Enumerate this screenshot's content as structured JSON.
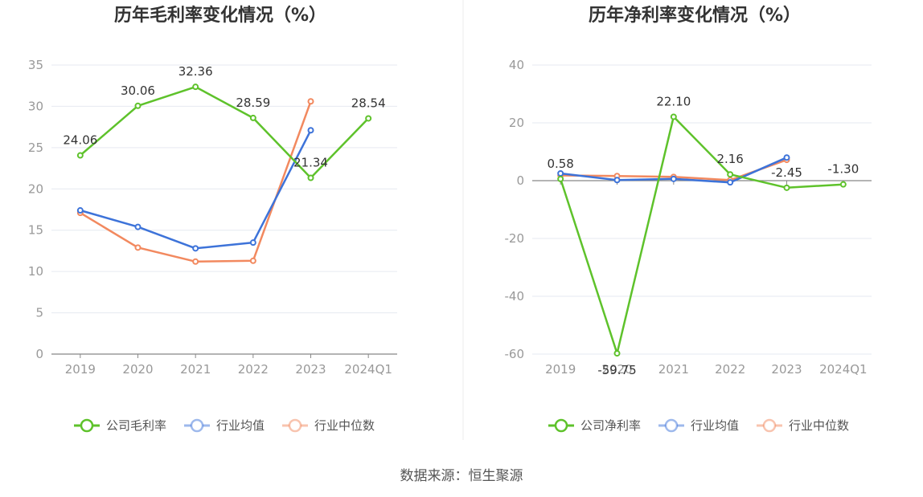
{
  "source": "数据来源：恒生聚源",
  "colors": {
    "company": "#5ec22b",
    "industry_avg": "#3d73d9",
    "industry_median": "#f2895f",
    "grid": "#e6e9f0",
    "axis": "#888888",
    "divider": "#eeeeee"
  },
  "chart_data": [
    {
      "type": "line",
      "title": "历年毛利率变化情况（%）",
      "categories": [
        "2019",
        "2020",
        "2021",
        "2022",
        "2023",
        "2024Q1"
      ],
      "ylim": [
        0,
        35
      ],
      "yticks": [
        0,
        5,
        10,
        15,
        20,
        25,
        30,
        35
      ],
      "grid": true,
      "legend_position": "bottom",
      "series": [
        {
          "name": "公司毛利率",
          "key": "company",
          "values": [
            24.06,
            30.06,
            32.36,
            28.59,
            21.34,
            28.54
          ],
          "labels": [
            "24.06",
            "30.06",
            "32.36",
            "28.59",
            "21.34",
            "28.54"
          ]
        },
        {
          "name": "行业均值",
          "key": "industry_avg",
          "values": [
            17.4,
            15.4,
            12.8,
            13.5,
            27.1,
            null
          ]
        },
        {
          "name": "行业中位数",
          "key": "industry_median",
          "values": [
            17.1,
            12.9,
            11.2,
            11.3,
            30.6,
            null
          ]
        }
      ]
    },
    {
      "type": "line",
      "title": "历年净利率变化情况（%）",
      "categories": [
        "2019",
        "2020",
        "2021",
        "2022",
        "2023",
        "2024Q1"
      ],
      "ylim": [
        -60,
        40
      ],
      "yticks": [
        -60,
        -40,
        -20,
        0,
        20,
        40
      ],
      "grid": true,
      "legend_position": "bottom",
      "series": [
        {
          "name": "公司净利率",
          "key": "company",
          "values": [
            0.58,
            -59.75,
            22.1,
            2.16,
            -2.45,
            -1.3
          ],
          "labels": [
            "0.58",
            "-59.75",
            "22.10",
            "2.16",
            "-2.45",
            "-1.30"
          ]
        },
        {
          "name": "行业均值",
          "key": "industry_avg",
          "values": [
            2.5,
            0.2,
            0.6,
            -0.6,
            8.0,
            null
          ]
        },
        {
          "name": "行业中位数",
          "key": "industry_median",
          "values": [
            1.8,
            1.6,
            1.3,
            0.2,
            7.2,
            null
          ]
        }
      ]
    }
  ]
}
